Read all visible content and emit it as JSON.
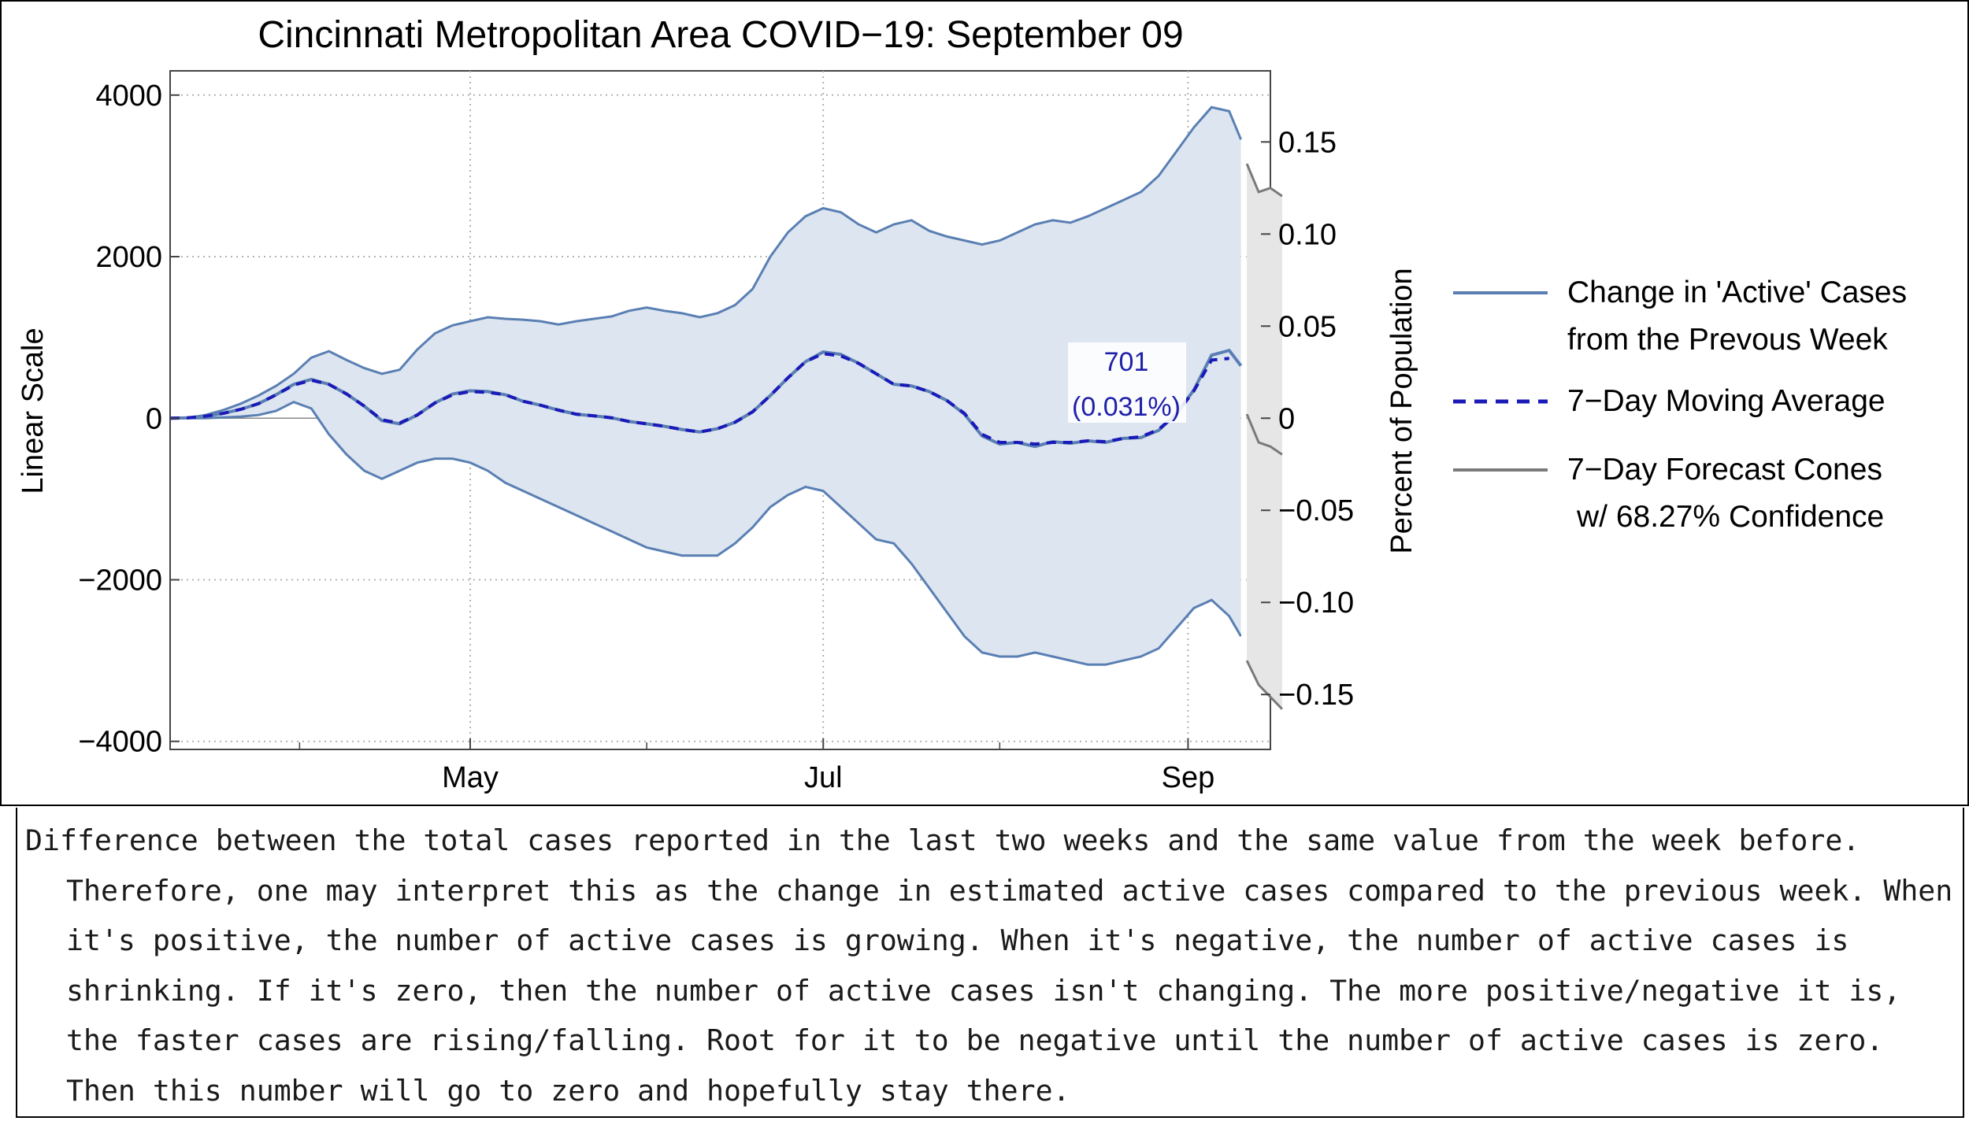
{
  "chart_data": {
    "type": "area",
    "title": "Cincinnati Metropolitan Area COVID−19: September 09",
    "ylabel_left": "Linear Scale",
    "ylabel_right": "Percent of Population",
    "left_axis": {
      "ylim": [
        -4100,
        4300
      ],
      "ticks": [
        4000,
        2000,
        0,
        -2000,
        -4000
      ],
      "tick_labels": [
        "4000",
        "2000",
        "0",
        "−2000",
        "−4000"
      ]
    },
    "right_axis": {
      "ticks": [
        0.15,
        0.1,
        0.05,
        0,
        -0.05,
        -0.1,
        -0.15
      ],
      "tick_labels": [
        "0.15",
        "0.10",
        "0.05",
        "0",
        "−0.05",
        "−0.10",
        "−0.15"
      ],
      "units_per_percent": 22800
    },
    "x_axis": {
      "start_day": 0,
      "end_day": 187,
      "month_ticks": [
        {
          "label": "May",
          "day": 51
        },
        {
          "label": "Jul",
          "day": 111
        },
        {
          "label": "Sep",
          "day": 173
        }
      ],
      "minor_ticks": [
        22,
        81,
        141
      ],
      "grid": true
    },
    "series": [
      {
        "name": "Change in 'Active' Cases from the Prevous Week",
        "color": "#5a7fb3",
        "x": [
          0,
          3,
          6,
          9,
          12,
          15,
          18,
          21,
          24,
          27,
          30,
          33,
          36,
          39,
          42,
          45,
          48,
          51,
          54,
          57,
          60,
          63,
          66,
          69,
          72,
          75,
          78,
          81,
          84,
          87,
          90,
          93,
          96,
          99,
          102,
          105,
          108,
          111,
          114,
          117,
          120,
          123,
          126,
          129,
          132,
          135,
          138,
          141,
          144,
          147,
          150,
          153,
          156,
          159,
          162,
          165,
          168,
          171,
          174,
          177,
          180,
          182
        ],
        "values": [
          0,
          5,
          25,
          60,
          110,
          180,
          290,
          420,
          480,
          420,
          300,
          150,
          -30,
          -70,
          40,
          190,
          300,
          340,
          330,
          290,
          210,
          160,
          100,
          50,
          30,
          5,
          -40,
          -70,
          -100,
          -140,
          -170,
          -130,
          -50,
          80,
          280,
          500,
          700,
          820,
          790,
          680,
          550,
          420,
          400,
          330,
          220,
          50,
          -220,
          -320,
          -300,
          -350,
          -290,
          -310,
          -280,
          -300,
          -250,
          -240,
          -150,
          50,
          350,
          780,
          840,
          650
        ]
      },
      {
        "name": "7−Day Moving Average",
        "color": "#1a1ab8",
        "x": [
          0,
          3,
          6,
          9,
          12,
          15,
          18,
          21,
          24,
          27,
          30,
          33,
          36,
          39,
          42,
          45,
          48,
          51,
          54,
          57,
          60,
          63,
          66,
          69,
          72,
          75,
          78,
          81,
          84,
          87,
          90,
          93,
          96,
          99,
          102,
          105,
          108,
          111,
          114,
          117,
          120,
          123,
          126,
          129,
          132,
          135,
          138,
          141,
          144,
          147,
          150,
          153,
          156,
          159,
          162,
          165,
          168,
          171,
          174,
          177,
          180
        ],
        "values": [
          0,
          5,
          25,
          60,
          110,
          180,
          290,
          410,
          470,
          420,
          300,
          150,
          -20,
          -60,
          40,
          190,
          290,
          330,
          320,
          290,
          210,
          160,
          100,
          50,
          30,
          5,
          -40,
          -70,
          -100,
          -140,
          -170,
          -130,
          -50,
          80,
          280,
          500,
          700,
          800,
          770,
          680,
          550,
          420,
          400,
          330,
          220,
          60,
          -200,
          -300,
          -300,
          -320,
          -300,
          -300,
          -280,
          -290,
          -250,
          -230,
          -140,
          50,
          340,
          720,
          740
        ]
      }
    ],
    "band": {
      "name": "7−Day Forecast Cones w/ 68.27% Confidence",
      "upper": [
        0,
        5,
        40,
        100,
        180,
        280,
        400,
        550,
        750,
        830,
        720,
        620,
        550,
        600,
        850,
        1050,
        1150,
        1200,
        1250,
        1230,
        1220,
        1200,
        1160,
        1200,
        1230,
        1260,
        1330,
        1370,
        1330,
        1300,
        1250,
        1300,
        1400,
        1600,
        2000,
        2300,
        2500,
        2600,
        2550,
        2400,
        2300,
        2400,
        2450,
        2320,
        2250,
        2200,
        2150,
        2200,
        2300,
        2400,
        2450,
        2420,
        2500,
        2600,
        2700,
        2800,
        3000,
        3300,
        3600,
        3850,
        3800,
        3450
      ],
      "lower": [
        0,
        0,
        0,
        10,
        20,
        40,
        90,
        200,
        120,
        -200,
        -450,
        -650,
        -750,
        -650,
        -550,
        -500,
        -500,
        -550,
        -650,
        -800,
        -900,
        -1000,
        -1100,
        -1200,
        -1300,
        -1400,
        -1500,
        -1600,
        -1650,
        -1700,
        -1700,
        -1700,
        -1550,
        -1350,
        -1100,
        -950,
        -850,
        -900,
        -1100,
        -1300,
        -1500,
        -1550,
        -1800,
        -2100,
        -2400,
        -2700,
        -2900,
        -2950,
        -2950,
        -2900,
        -2950,
        -3000,
        -3050,
        -3050,
        -3000,
        -2950,
        -2850,
        -2600,
        -2350,
        -2250,
        -2450,
        -2700
      ]
    },
    "forecast_cones": {
      "x": [
        183,
        185,
        187,
        189
      ],
      "upper": [
        3150,
        2800,
        2850,
        2750
      ],
      "lower": [
        -3000,
        -3300,
        -3450,
        -3600
      ],
      "center_values": [
        50,
        -300,
        -350,
        -450
      ]
    },
    "annotation": {
      "value_label": "701",
      "percent_label": "(0.031%)",
      "at_day": 170
    },
    "legend": {
      "placement": "right",
      "entries": [
        {
          "line1": "Change in 'Active' Cases",
          "line2": "from the Prevous Week",
          "style": "solid",
          "color": "#5a7fb3"
        },
        {
          "line1": "7−Day Moving Average",
          "line2": "",
          "style": "dashed",
          "color": "#1a1ab8"
        },
        {
          "line1": "7−Day Forecast Cones",
          "line2": "w/ 68.27% Confidence",
          "style": "solid",
          "color": "#7a7a7a"
        }
      ]
    }
  },
  "caption": "Difference between the total cases reported in the last two weeks and the same value from the week before. Therefore, one may interpret this as the change in estimated active cases compared to the previous week. When it's positive, the number of active cases is growing. When it's negative, the number of active cases is shrinking. If it's zero, then the number of active cases isn't changing. The more positive/negative it is, the faster cases are rising/falling. Root for it to be negative until the number of active cases is zero. Then this number will go to zero and hopefully stay there."
}
